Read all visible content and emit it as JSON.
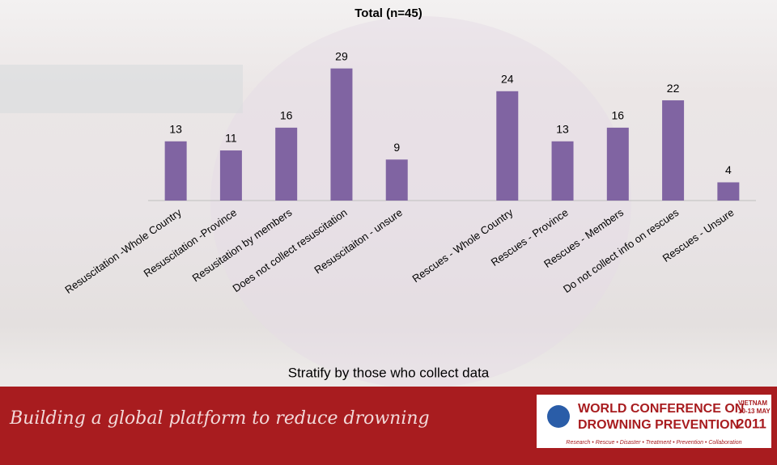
{
  "chart_data": {
    "type": "bar",
    "title": "Total (n=45)",
    "categories": [
      "Resuscitation -Whole Country",
      "Resuscitation -Province",
      "Resusitation by members",
      "Does not collect resuscitation",
      "Resuscitaiton - unsure",
      null,
      "Rescues - Whole Country",
      "Rescues - Province",
      "Rescues - Members",
      "Do not collect info on rescues",
      "Rescues - Unsure"
    ],
    "values": [
      13,
      11,
      16,
      29,
      9,
      null,
      24,
      13,
      16,
      22,
      4
    ],
    "color": "#8064a2",
    "ylim": [
      0,
      30
    ],
    "x_label": "Stratify by those who collect data"
  },
  "footer": {
    "slogan": "Building a global platform to reduce drowning",
    "logo_line1": "WORLD CONFERENCE ON",
    "logo_line2": "DROWNING PREVENTION",
    "country": "VIETNAM",
    "dates": "10-13 MAY",
    "year": "2011",
    "tagline": "Research • Rescue • Disaster • Treatment • Prevention • Collaboration"
  }
}
